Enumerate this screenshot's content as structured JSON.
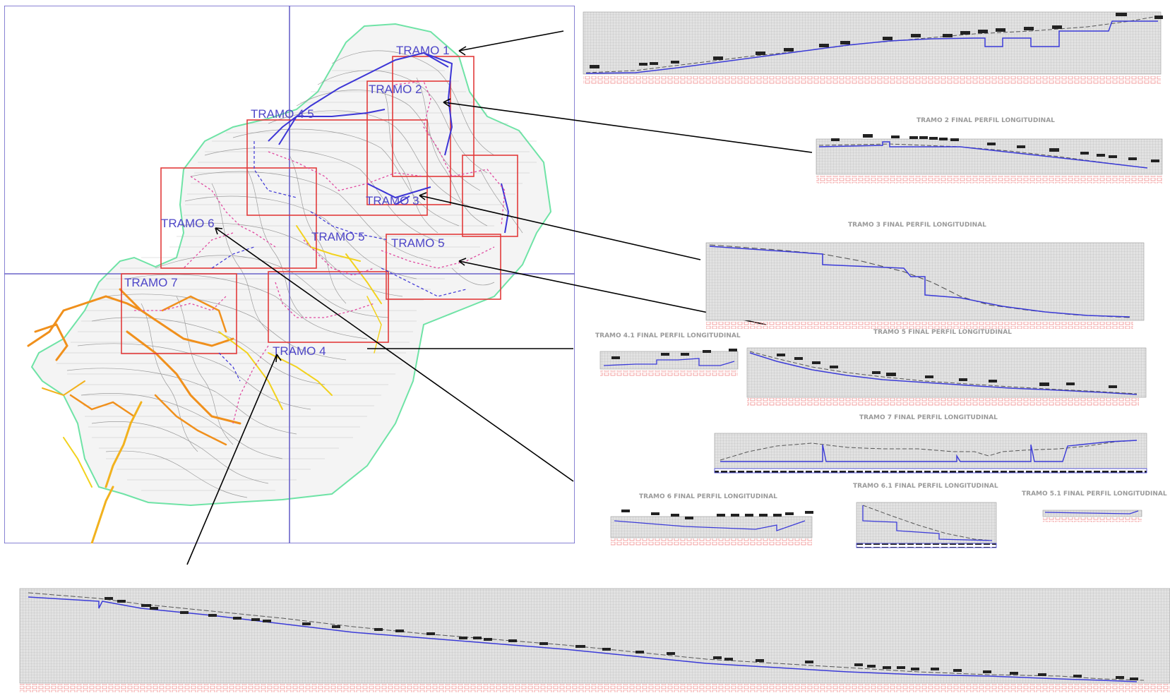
{
  "map": {
    "labels": [
      {
        "id": "t1",
        "text": "TRAMO 1"
      },
      {
        "id": "t2",
        "text": "TRAMO 2"
      },
      {
        "id": "t45",
        "text": "TRAMO 4 5"
      },
      {
        "id": "t3",
        "text": "TRAMO 3"
      },
      {
        "id": "t6",
        "text": "TRAMO 6"
      },
      {
        "id": "t5a",
        "text": "TRAMO 5"
      },
      {
        "id": "t5b",
        "text": "TRAMO 5"
      },
      {
        "id": "t7",
        "text": "TRAMO 7"
      },
      {
        "id": "t4",
        "text": "TRAMO 4"
      }
    ],
    "colors": {
      "boundary": "#6fe3a6",
      "grid": "#6a63c9",
      "frames": "#e23b3b",
      "contours": "#8c8c8c",
      "network": "#3c35d6",
      "roads_orange": "#f0901c",
      "roads_yellow": "#f2d21e"
    }
  },
  "profiles": {
    "tramo2": "TRAMO 2 FINAL PERFIL LONGITUDINAL",
    "tramo3": "TRAMO 3 FINAL PERFIL LONGITUDINAL",
    "tramo41": "TRAMO 4.1 FINAL PERFIL LONGITUDINAL",
    "tramo5": "TRAMO 5 FINAL PERFIL LONGITUDINAL",
    "tramo7": "TRAMO 7 FINAL PERFIL LONGITUDINAL",
    "tramo61": "TRAMO 6.1 FINAL PERFIL LONGITUDINAL",
    "tramo51": "TRAMO 5.1 FINAL PERFIL LONGITUDINAL",
    "tramo6": "TRAMO 6 FINAL PERFIL LONGITUDINAL"
  },
  "style": {
    "profile_line": "#3b3bd8",
    "terrain_line": "#555555",
    "grid_fill": "#dcdcdc",
    "grid_line": "#bdbdbd",
    "station_labels": "#f08a8a"
  }
}
